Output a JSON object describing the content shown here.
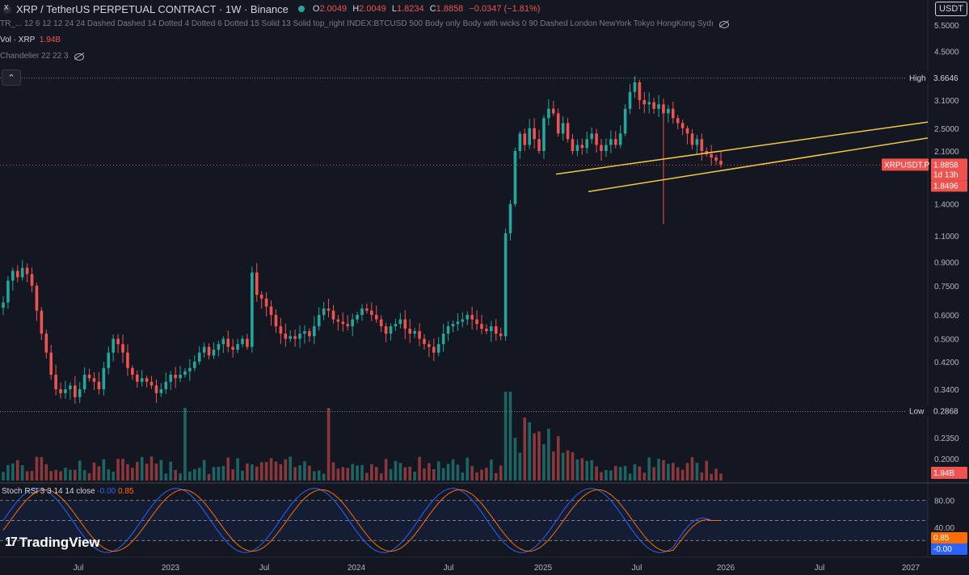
{
  "header": {
    "title": "XRP / TetherUS PERPETUAL CONTRACT · 1W · Binance",
    "ohlc": [
      {
        "k": "O",
        "v": "2.0049"
      },
      {
        "k": "H",
        "v": "2.0049"
      },
      {
        "k": "L",
        "v": "1.8234"
      },
      {
        "k": "C",
        "v": "1.8858"
      },
      {
        "k": "",
        "v": "−0.0347 (−1.81%)"
      }
    ],
    "indicator_line": "TR_...  12 6 12 12 24 24 Dashed Dashed 14 Dotted 4 Dotted 6 Dotted 15 Solid 13 Solid top_right INDEX:BTCUSD 500 Body only Body with wicks 0 90 Dashed London NewYork Tokyo HongKong Sydı",
    "volume_label": "Vol · XRP",
    "volume_value": "1.94B",
    "chandelier_label": "Chandelier 22 22 3",
    "currency_button": "USDT",
    "collapse_icon": "chevron-up-icon"
  },
  "rsi": {
    "label": "Stoch RSI 3 3 14 14 close",
    "k_value": "-0.00",
    "d_value": "0.85"
  },
  "logo": {
    "text": "TradingView"
  },
  "colors": {
    "up": "#26a69a",
    "down": "#ef5350",
    "rsi_k": "#2962ff",
    "rsi_d": "#ff6d00",
    "channel": "#f7c548",
    "background": "#131722"
  },
  "chart_data": {
    "type": "candlestick",
    "symbol": "XRPUSDT.P",
    "interval": "1W",
    "y_scale": "log",
    "y_ticks": [
      "5.5000",
      "4.5000",
      "3.6646",
      "3.1000",
      "2.5000",
      "2.1000",
      "1.8858",
      "1.8496",
      "1.4000",
      "1.1000",
      "0.9000",
      "0.7500",
      "0.6000",
      "0.5000",
      "0.4200",
      "0.3400",
      "0.2868",
      "0.2350",
      "0.2000"
    ],
    "y_tick_values": [
      5.5,
      4.5,
      3.1,
      2.5,
      2.1,
      1.4,
      1.1,
      0.9,
      0.75,
      0.6,
      0.5,
      0.42,
      0.34,
      0.235,
      0.2
    ],
    "x_ticks": [
      "Jul",
      "2023",
      "Jul",
      "2024",
      "Jul",
      "2025",
      "Jul",
      "2026",
      "Jul",
      "2027"
    ],
    "high": {
      "label": "High",
      "value": "3.6646"
    },
    "low": {
      "label": "Low",
      "value": "0.2868"
    },
    "last_price": {
      "symbol": "XRPUSDT.P",
      "value": "1.8858",
      "countdown": "1d 13h",
      "stop": "1.8496"
    },
    "volume_last": "1.94B",
    "rsi_ticks": [
      "80.00",
      "40.00",
      "0.85",
      "-0.00"
    ],
    "rsi_tick_values": [
      80,
      40
    ],
    "rsi_last": {
      "d": "0.85",
      "k": "-0.00"
    },
    "price_path": [
      [
        0.66,
        0.78,
        0.84,
        0.8,
        0.86,
        0.82,
        0.75,
        0.62,
        0.52,
        0.45,
        0.38,
        0.34,
        0.33,
        0.34,
        0.35,
        0.32,
        0.34,
        0.38,
        0.37,
        0.36,
        0.34,
        0.4,
        0.45,
        0.5,
        0.48,
        0.45,
        0.4,
        0.38,
        0.36,
        0.37,
        0.36,
        0.35,
        0.33,
        0.34,
        0.36,
        0.38,
        0.37,
        0.38,
        0.39,
        0.4,
        0.42,
        0.45,
        0.47,
        0.44,
        0.46,
        0.48,
        0.5,
        0.47,
        0.46,
        0.48,
        0.5,
        0.47,
        0.83,
        0.7,
        0.68,
        0.64,
        0.6,
        0.55,
        0.52,
        0.5,
        0.51,
        0.5,
        0.52,
        0.53,
        0.51,
        0.55,
        0.6,
        0.63,
        0.62,
        0.58,
        0.57,
        0.56,
        0.55,
        0.58,
        0.6,
        0.63,
        0.62,
        0.6,
        0.58,
        0.55,
        0.52,
        0.55,
        0.56,
        0.58,
        0.54,
        0.52,
        0.53,
        0.5,
        0.48,
        0.47,
        0.45,
        0.48,
        0.52,
        0.55,
        0.56,
        0.57,
        0.58,
        0.6,
        0.58,
        0.56,
        0.54,
        0.53,
        0.55,
        0.52,
        0.51,
        1.12,
        1.4,
        2.1,
        2.4,
        2.2,
        2.5,
        2.3,
        2.1,
        2.7,
        2.9,
        2.8,
        2.4,
        2.6,
        2.3,
        2.1,
        2.2,
        2.15,
        2.3,
        2.4,
        2.2,
        2.1,
        2.2,
        2.3,
        2.2,
        2.4,
        2.9,
        3.3,
        3.55,
        3.1,
        3.0,
        3.05,
        2.9,
        3.0,
        2.8,
        2.9,
        2.7,
        2.6,
        2.5,
        2.4,
        2.2,
        2.3,
        2.1,
        2.05,
        2.0,
        1.95,
        1.89
      ]
    ],
    "channel": [
      {
        "from": [
          "2025-03",
          "1.76"
        ],
        "to": [
          "2026-01",
          "2.62"
        ]
      },
      {
        "from": [
          "2025-04",
          "1.54"
        ],
        "to": [
          "2026-01",
          "2.32"
        ]
      }
    ]
  }
}
